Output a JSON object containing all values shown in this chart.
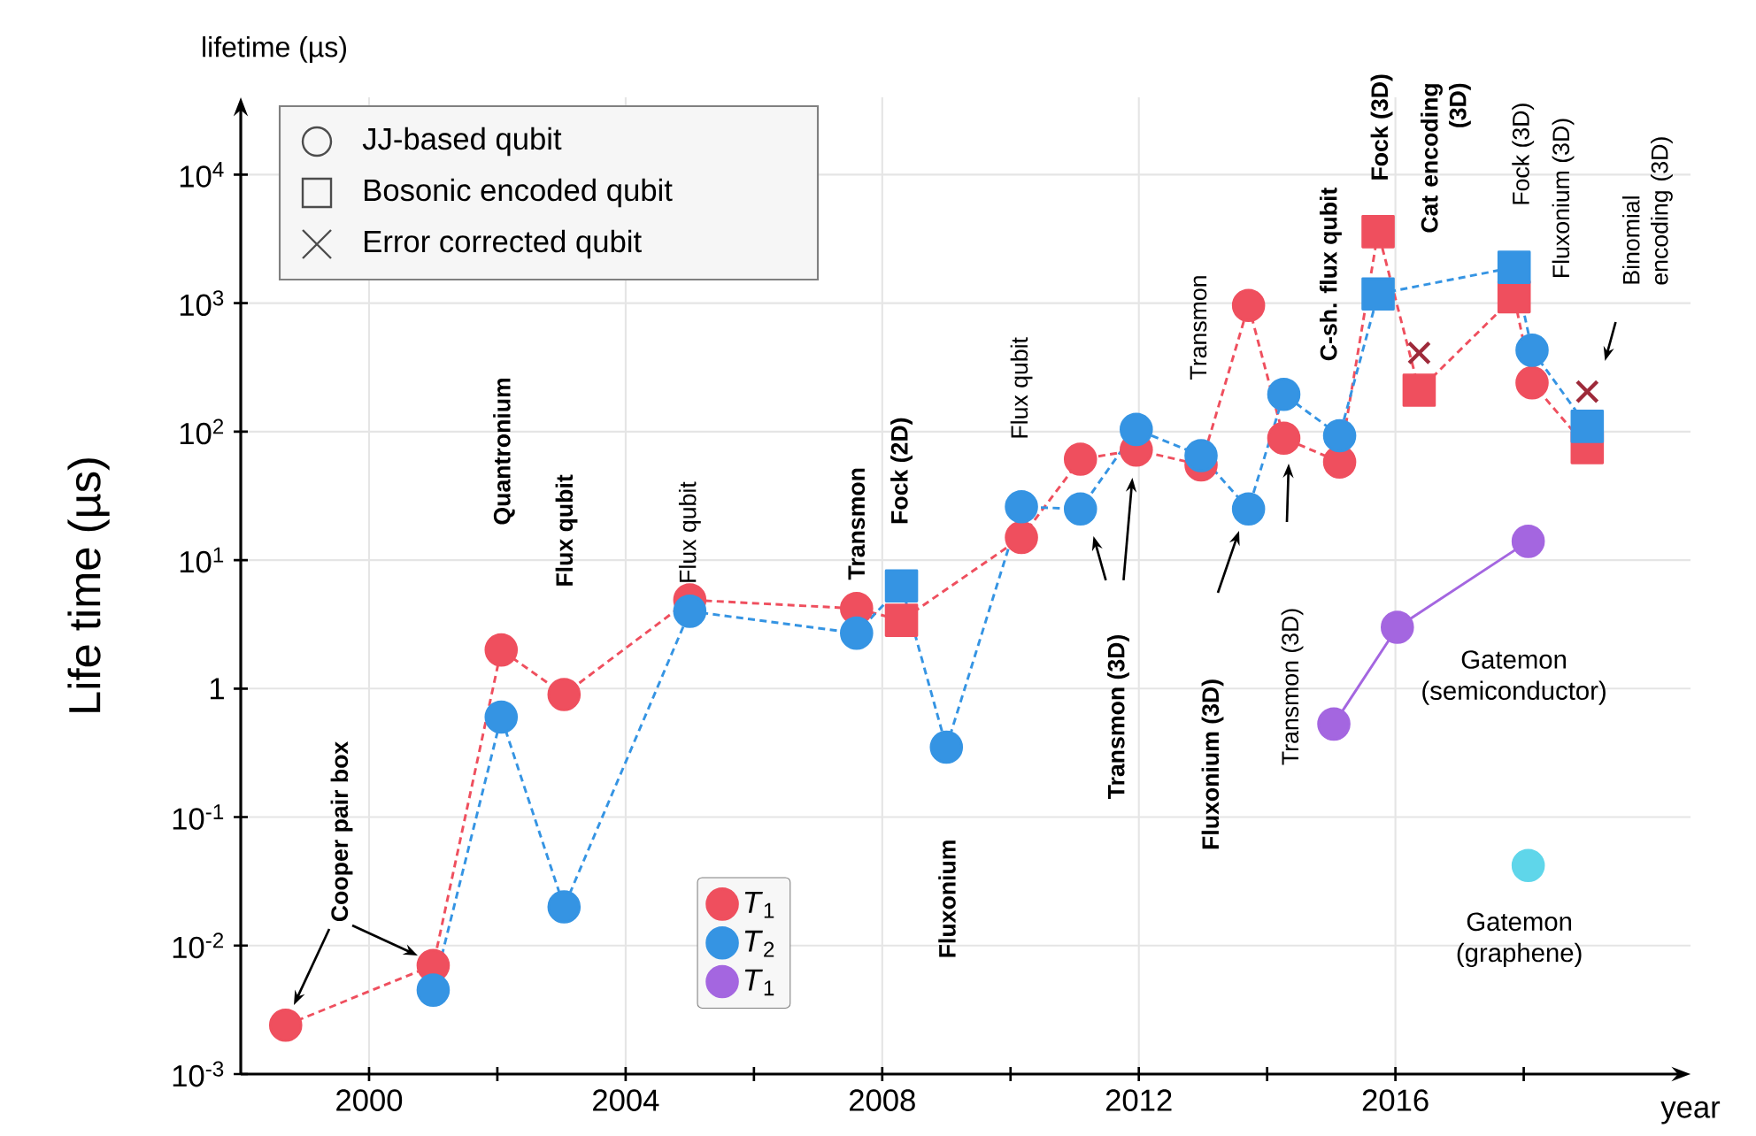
{
  "chart_data": {
    "type": "scatter",
    "xlabel": "year",
    "ylabel": "Life time (µs)",
    "xlim": [
      1998,
      2020.6
    ],
    "ylim": [
      0.001,
      40000
    ],
    "log": true,
    "grid": true,
    "legend": "bottom",
    "xticks": [
      2000,
      {
        "value": 2002,
        "label": null
      },
      2004,
      {
        "value": 2006,
        "label": null
      },
      2008,
      {
        "value": 2010,
        "label": null
      },
      2012,
      {
        "value": 2014,
        "label": null
      },
      2016,
      {
        "value": 2018,
        "label": null
      }
    ],
    "yticks": [
      {
        "value": 0.001,
        "label": "10$^{-3}$"
      },
      {
        "value": 0.01,
        "label": "10$^{-2}$"
      },
      {
        "value": 0.1,
        "label": "10$^{-1}$"
      },
      1,
      {
        "value": 10,
        "label": "10$^{1}$"
      },
      {
        "value": 100,
        "label": "10$^{2}$"
      },
      {
        "value": 1000,
        "label": "10$^{3}$"
      },
      {
        "value": 10000,
        "label": "10$^{4}$"
      }
    ],
    "series": [
      {
        "type": "line",
        "color": "#ef4f5e",
        "marker": "none",
        "line_style": "dashed",
        "x": [
          1998.7,
          2001.0,
          2002.06,
          2003.04,
          2005.0,
          2007.6,
          2008.3,
          2010.17,
          2011.09,
          2011.96,
          2012.97,
          2013.71,
          2014.26,
          2015.13,
          2015.73,
          2016.37,
          2017.85,
          2018.13,
          2018.99
        ],
        "values": [
          0.0024,
          0.007,
          2.0,
          0.9,
          4.9,
          4.2,
          3.4,
          15,
          61,
          72,
          55,
          960,
          89,
          58,
          3600,
          210,
          1120,
          240,
          75
        ]
      },
      {
        "type": "line",
        "color": "#3594e3",
        "marker": "none",
        "line_style": "dashed",
        "x": [
          2001.0,
          2002.06,
          2003.04,
          2005.0,
          2007.6,
          2008.3,
          2009.0,
          2010.17,
          2011.09,
          2011.96,
          2012.97,
          2013.71,
          2014.26,
          2015.13,
          2015.73,
          2017.85,
          2018.13,
          2018.99
        ],
        "values": [
          0.0045,
          0.6,
          0.02,
          4.0,
          2.7,
          6.3,
          0.35,
          26,
          25,
          104,
          65,
          25,
          195,
          93,
          1180,
          1900,
          430,
          110
        ]
      },
      {
        "name": "*T*$_{1}$",
        "color": "#ef4f5e",
        "marker": "circle",
        "x": [
          1998.7,
          2001.0,
          2002.06,
          2003.04,
          2005.0,
          2007.6,
          2010.17,
          2011.09,
          2011.96,
          2012.97,
          2013.71,
          2014.26,
          2015.13,
          2018.13
        ],
        "values": [
          0.0024,
          0.007,
          2.0,
          0.9,
          4.9,
          4.2,
          15,
          61,
          72,
          55,
          960,
          89,
          58,
          240
        ]
      },
      {
        "name": "*T*$_{2}$",
        "color": "#3594e3",
        "marker": "circle",
        "x": [
          2001.0,
          2002.06,
          2003.04,
          2005.0,
          2007.6,
          2009.0,
          2010.17,
          2011.09,
          2011.96,
          2012.97,
          2013.71,
          2014.26,
          2015.13,
          2018.13
        ],
        "values": [
          0.0045,
          0.6,
          0.02,
          4.0,
          2.7,
          0.35,
          26,
          25,
          104,
          65,
          25,
          195,
          93,
          430
        ]
      },
      {
        "type": "line",
        "name": "*T*$_{1}$",
        "color": "#a466e0",
        "marker": "circle",
        "line_style": "solid",
        "x": [
          2015.04,
          2016.03,
          2018.07
        ],
        "values": [
          0.53,
          3.0,
          14
        ]
      },
      {
        "color": "#ef4f5e",
        "marker": "square",
        "x": [
          2008.3,
          2015.73,
          2016.37,
          2017.85,
          2018.99
        ],
        "values": [
          3.4,
          3600,
          210,
          1120,
          75
        ]
      },
      {
        "color": "#3594e3",
        "marker": "square",
        "x": [
          2008.3,
          2015.73,
          2017.85,
          2018.99
        ],
        "values": [
          6.3,
          1180,
          1900,
          110
        ]
      },
      {
        "color": "#9e2a3a",
        "marker": "cross",
        "x": [
          2016.37,
          2018.99
        ],
        "values": [
          410,
          205
        ]
      },
      {
        "color": "#5fd6ea",
        "marker": "circle",
        "x": [
          2018.07
        ],
        "values": [
          0.042
        ]
      }
    ],
    "annotations": [
      "Cooper pair box",
      "Quantronium",
      "Flux qubit",
      {
        "text": "Flux qubit",
        "x": 2005.0,
        "y": 4.9
      },
      {
        "text": "Transmon",
        "x": 2007.6,
        "y": 4.2
      },
      {
        "text": "Fock (2D)",
        "x": 2008.3,
        "y": 6.3
      },
      "Fluxonium",
      {
        "text": "Flux qubit",
        "x": 2010.17,
        "y": 26
      },
      "Transmon (3D)",
      "Fluxonium (3D)",
      "Transmon (3D)",
      "Transmon",
      "C-sh. flux qubit",
      {
        "text": "Fock (3D)",
        "x": 2015.73,
        "y": 3600
      },
      "Cat encoding (3D)",
      {
        "text": "Fock (3D)",
        "x": 2017.85,
        "y": 1900
      },
      "Fluxonium (3D)",
      "Binomial encoding (3D)",
      "Gatemon (semiconductor)",
      {
        "text": "Gatemon (graphene)",
        "x": 2018.07,
        "y": 0.042
      },
      "lifetime (µs)",
      "JJ-based qubit",
      "Bosonic encoded qubit",
      "Error corrected qubit"
    ]
  }
}
